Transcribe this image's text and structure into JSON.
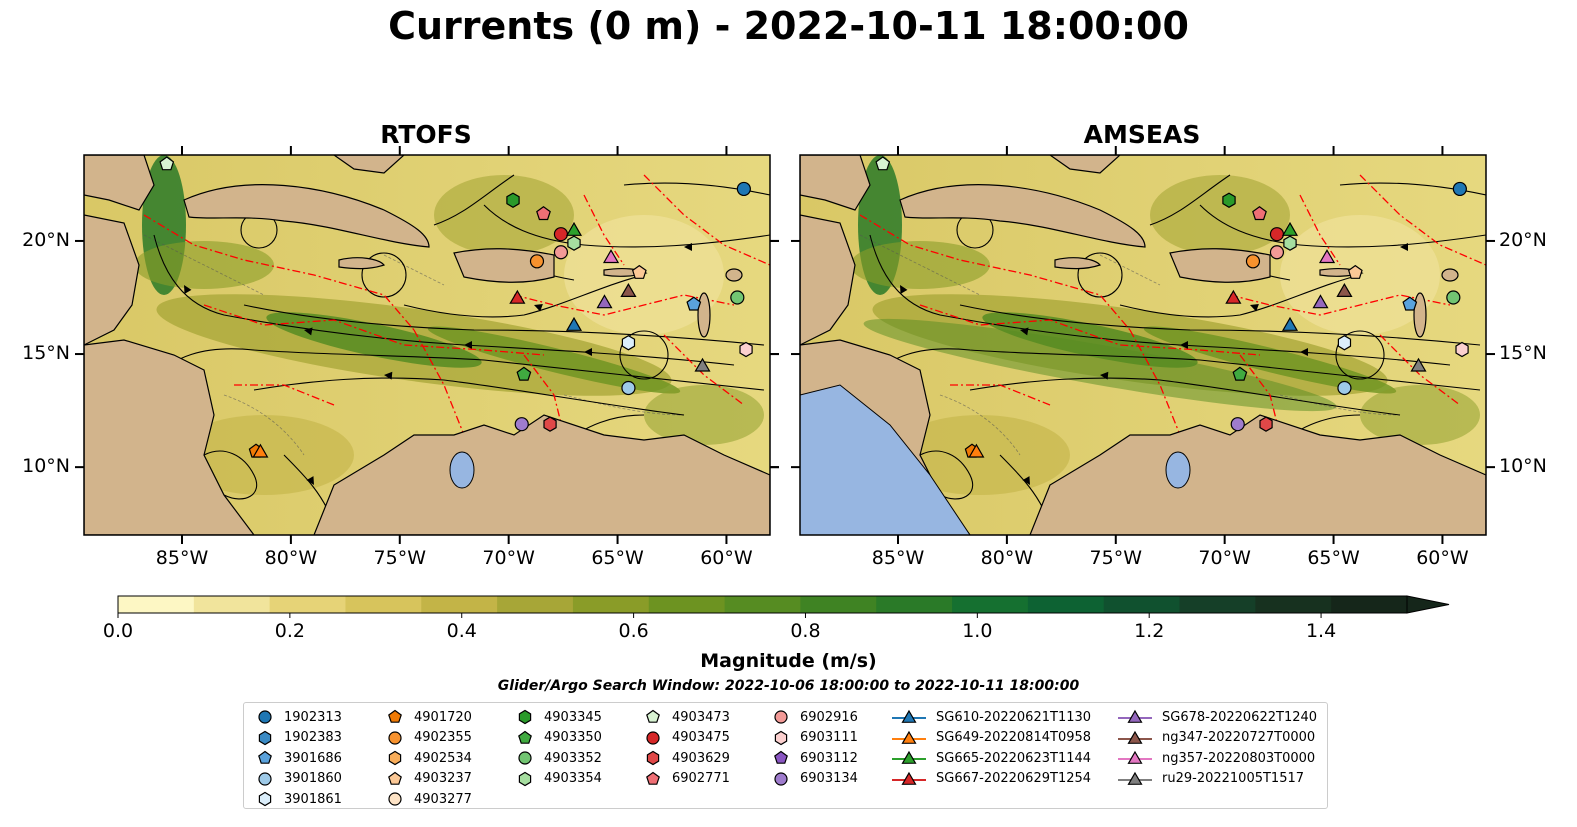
{
  "title": "Currents (0 m) - 2022-10-11 18:00:00",
  "panels": [
    {
      "title": "RTOFS"
    },
    {
      "title": "AMSEAS"
    }
  ],
  "lon_ticks": [
    "85°W",
    "80°W",
    "75°W",
    "70°W",
    "65°W",
    "60°W"
  ],
  "lat_ticks": [
    "20°N",
    "15°N",
    "10°N"
  ],
  "colorbar": {
    "label": "Magnitude (m/s)",
    "ticks": [
      "0.0",
      "0.2",
      "0.4",
      "0.6",
      "0.8",
      "1.0",
      "1.2",
      "1.4"
    ],
    "min": 0,
    "max": 1.5,
    "extend": "max",
    "colors": [
      "#fdf7c4",
      "#f1e49c",
      "#e6d377",
      "#d7c45c",
      "#c3b447",
      "#a7a637",
      "#8a9c28",
      "#6d9321",
      "#568c22",
      "#3f8323",
      "#2a7a28",
      "#157030",
      "#0d6233",
      "#10512f",
      "#153f28",
      "#17311f",
      "#15261a"
    ]
  },
  "search_window": "Glider/Argo Search Window: 2022-10-06 18:00:00 to 2022-10-11 18:00:00",
  "colors": {
    "land": "#d2b48c",
    "water_pacific": "#97b6e1",
    "eez_line": "#ff0000",
    "coast": "#000000"
  },
  "legend": [
    [
      {
        "label": "1902313",
        "marker": "circle",
        "color": "#1f77b4"
      },
      {
        "label": "1902383",
        "marker": "hexagon",
        "color": "#3a8ac4"
      },
      {
        "label": "3901686",
        "marker": "pentagon",
        "color": "#5aa2dc"
      },
      {
        "label": "3901860",
        "marker": "circle",
        "color": "#9ecae8"
      },
      {
        "label": "3901861",
        "marker": "hexagon",
        "color": "#dbeefb"
      }
    ],
    [
      {
        "label": "4901720",
        "marker": "pentagon",
        "color": "#ef7a05"
      },
      {
        "label": "4902355",
        "marker": "circle",
        "color": "#f7922e"
      },
      {
        "label": "4902534",
        "marker": "hexagon",
        "color": "#f8ad5a"
      },
      {
        "label": "4903237",
        "marker": "pentagon",
        "color": "#fbc896"
      },
      {
        "label": "4903277",
        "marker": "circle",
        "color": "#fde3c6"
      }
    ],
    [
      {
        "label": "4903345",
        "marker": "hexagon",
        "color": "#2a9a2a"
      },
      {
        "label": "4903350",
        "marker": "pentagon",
        "color": "#40aa40"
      },
      {
        "label": "4903352",
        "marker": "circle",
        "color": "#72c572"
      },
      {
        "label": "4903354",
        "marker": "hexagon",
        "color": "#a6dea0"
      }
    ],
    [
      {
        "label": "4903473",
        "marker": "pentagon",
        "color": "#d8f3d2"
      },
      {
        "label": "4903475",
        "marker": "circle",
        "color": "#d62728"
      },
      {
        "label": "4903629",
        "marker": "hexagon",
        "color": "#e04848"
      },
      {
        "label": "6902771",
        "marker": "pentagon",
        "color": "#ef6f75"
      }
    ],
    [
      {
        "label": "6902916",
        "marker": "circle",
        "color": "#f39a97"
      },
      {
        "label": "6903111",
        "marker": "hexagon",
        "color": "#fbd0cf"
      },
      {
        "label": "6903112",
        "marker": "pentagon",
        "color": "#8a56c2"
      },
      {
        "label": "6903134",
        "marker": "circle",
        "color": "#9f7ccd"
      }
    ],
    [
      {
        "label": "SG610-20220621T1130",
        "marker": "triangle",
        "color": "#1f77b4",
        "line": true
      },
      {
        "label": "SG649-20220814T0958",
        "marker": "triangle",
        "color": "#ff7f0e",
        "line": true
      },
      {
        "label": "SG665-20220623T1144",
        "marker": "triangle",
        "color": "#2ca02c",
        "line": true
      },
      {
        "label": "SG667-20220629T1254",
        "marker": "triangle",
        "color": "#d62728",
        "line": true
      }
    ],
    [
      {
        "label": "SG678-20220622T1240",
        "marker": "triangle",
        "color": "#9467bd",
        "line": true
      },
      {
        "label": "ng347-20220727T0000",
        "marker": "triangle",
        "color": "#8c564b",
        "line": true
      },
      {
        "label": "ng357-20220803T0000",
        "marker": "triangle",
        "color": "#e377c2",
        "line": true
      },
      {
        "label": "ru29-20221005T1517",
        "marker": "triangle",
        "color": "#7f7f7f",
        "line": true
      }
    ]
  ],
  "platforms": [
    {
      "id": "3901861",
      "marker": "hexagon",
      "color": "#dbeefb",
      "lon": -64.5,
      "lat": 15.5
    },
    {
      "id": "4903473",
      "marker": "pentagon",
      "color": "#d8f3d2",
      "lon": -85.7,
      "lat": 23.4
    },
    {
      "id": "1902313",
      "marker": "circle",
      "color": "#1f77b4",
      "lon": -59.2,
      "lat": 22.3
    },
    {
      "id": "4903345",
      "marker": "hexagon",
      "color": "#2a9a2a",
      "lon": -69.8,
      "lat": 21.8
    },
    {
      "id": "6902771",
      "marker": "pentagon",
      "color": "#ef6f75",
      "lon": -68.4,
      "lat": 21.2
    },
    {
      "id": "4903475",
      "marker": "circle",
      "color": "#d62728",
      "lon": -67.6,
      "lat": 20.3
    },
    {
      "id": "4903354",
      "marker": "hexagon",
      "color": "#a6dea0",
      "lon": -67.0,
      "lat": 19.9
    },
    {
      "id": "6902916",
      "marker": "circle",
      "color": "#f39a97",
      "lon": -67.6,
      "lat": 19.5
    },
    {
      "id": "4902355",
      "marker": "circle",
      "color": "#f7922e",
      "lon": -68.7,
      "lat": 19.1
    },
    {
      "id": "4903237",
      "marker": "pentagon",
      "color": "#fbc896",
      "lon": -64.0,
      "lat": 18.6
    },
    {
      "id": "4903352",
      "marker": "circle",
      "color": "#72c572",
      "lon": -59.5,
      "lat": 17.5
    },
    {
      "id": "3901686",
      "marker": "pentagon",
      "color": "#5aa2dc",
      "lon": -61.5,
      "lat": 17.2
    },
    {
      "id": "6903111",
      "marker": "hexagon",
      "color": "#fbd0cf",
      "lon": -59.1,
      "lat": 15.2
    },
    {
      "id": "4903350",
      "marker": "pentagon",
      "color": "#40aa40",
      "lon": -69.3,
      "lat": 14.1
    },
    {
      "id": "3901860",
      "marker": "circle",
      "color": "#9ecae8",
      "lon": -64.5,
      "lat": 13.5
    },
    {
      "id": "6903134",
      "marker": "circle",
      "color": "#9f7ccd",
      "lon": -69.4,
      "lat": 11.9
    },
    {
      "id": "4903629",
      "marker": "hexagon",
      "color": "#e04848",
      "lon": -68.1,
      "lat": 11.9
    },
    {
      "id": "4901720",
      "marker": "pentagon",
      "color": "#ef7a05",
      "lon": -81.6,
      "lat": 10.7
    },
    {
      "id": "SG665-20220623T1144",
      "marker": "triangle",
      "color": "#2ca02c",
      "lon": -67.0,
      "lat": 20.5
    },
    {
      "id": "ng357-20220803T0000",
      "marker": "triangle",
      "color": "#e377c2",
      "lon": -65.3,
      "lat": 19.3
    },
    {
      "id": "SG667-20220629T1254",
      "marker": "triangle",
      "color": "#d62728",
      "lon": -69.6,
      "lat": 17.5
    },
    {
      "id": "SG678-20220622T1240",
      "marker": "triangle",
      "color": "#9467bd",
      "lon": -65.6,
      "lat": 17.3
    },
    {
      "id": "ng347-20220727T0000",
      "marker": "triangle",
      "color": "#8c564b",
      "lon": -64.5,
      "lat": 17.8
    },
    {
      "id": "SG610-20220621T1130",
      "marker": "triangle",
      "color": "#1f77b4",
      "lon": -67.0,
      "lat": 16.3
    },
    {
      "id": "ru29-20221005T1517",
      "marker": "triangle",
      "color": "#7f7f7f",
      "lon": -61.1,
      "lat": 14.5
    },
    {
      "id": "SG649-20220814T0958",
      "marker": "triangle",
      "color": "#ff7f0e",
      "lon": -81.4,
      "lat": 10.7
    }
  ]
}
